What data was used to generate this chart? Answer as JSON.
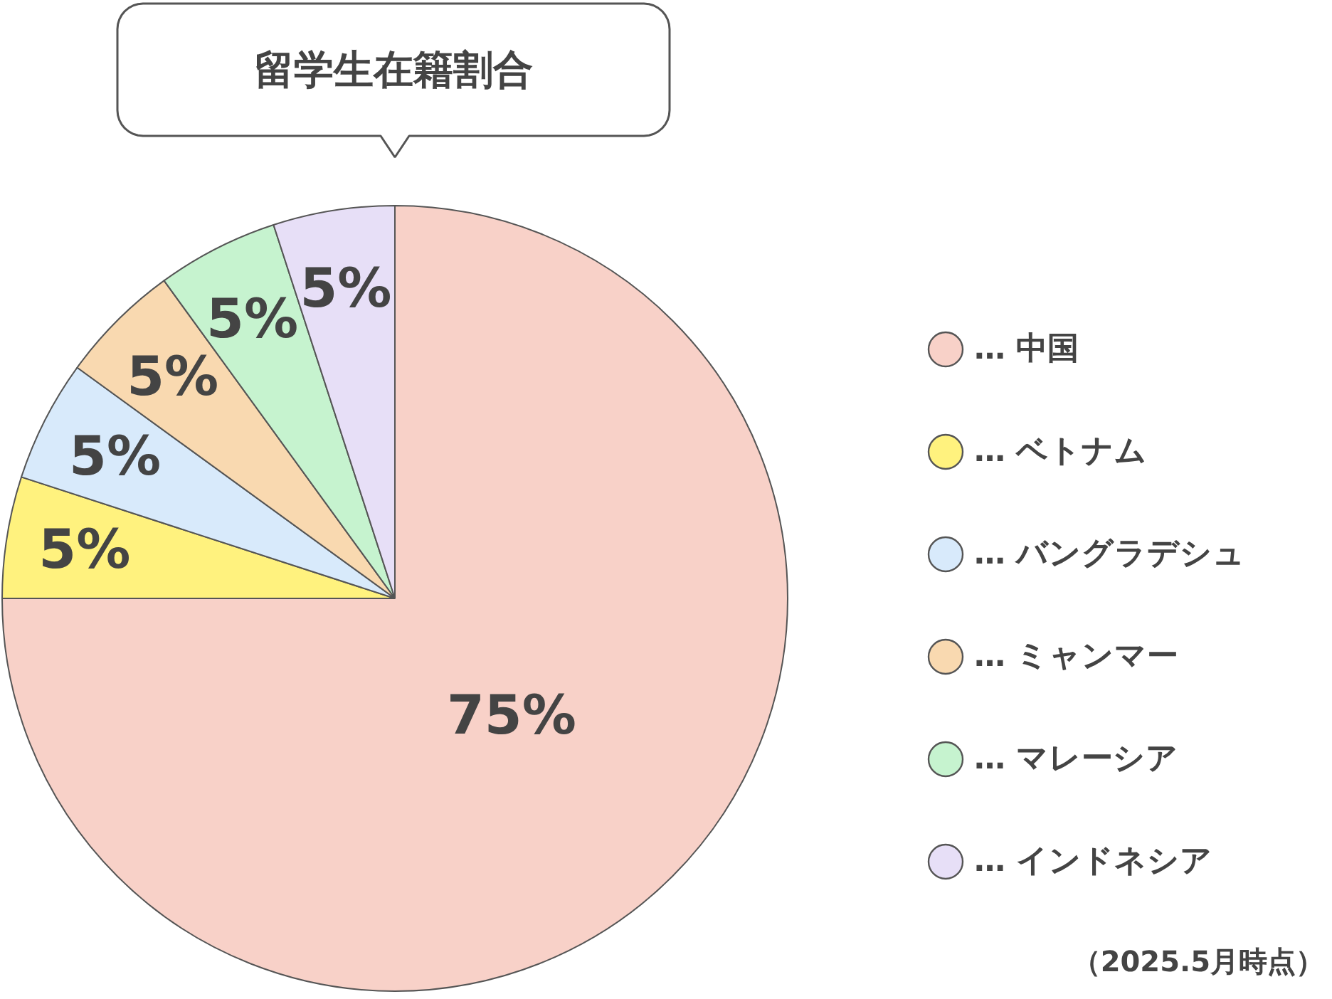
{
  "chart_data": {
    "type": "pie",
    "title": "留学生在籍割合",
    "categories": [
      "… 中国",
      "… ベトナム",
      "… バングラデシュ",
      "… ミャンマー",
      "… マレーシア",
      "… インドネシア"
    ],
    "values": [
      75,
      5,
      5,
      5,
      5,
      5
    ],
    "value_labels": [
      "75%",
      "5%",
      "5%",
      "5%",
      "5%",
      "5%"
    ],
    "colors": [
      "#f8d1c8",
      "#fff27e",
      "#d8eafb",
      "#f9d9b0",
      "#c6f3cf",
      "#e7dff7"
    ],
    "legend": "right",
    "annotations": [
      "（2025.5月時点）"
    ]
  }
}
